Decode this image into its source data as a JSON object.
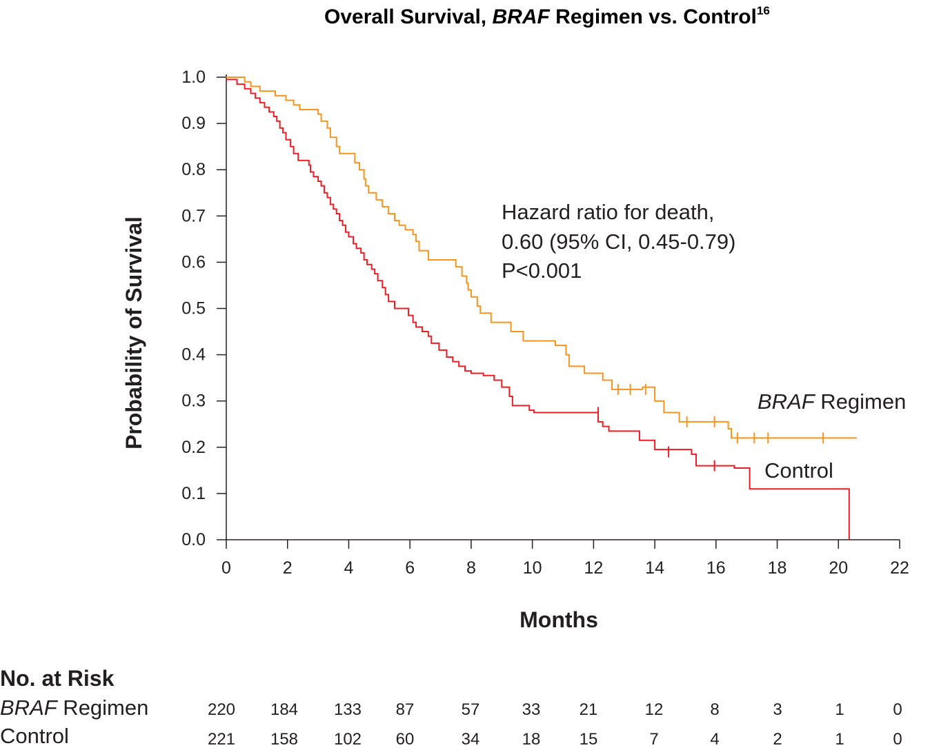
{
  "chart_data": {
    "type": "line",
    "title_main": "Overall Survival, ",
    "title_italic": "BRAF",
    "title_rest": " Regimen vs. Control",
    "title_sup": "16",
    "xlabel": "Months",
    "ylabel": "Probability of Survival",
    "xlim": [
      0,
      22
    ],
    "ylim": [
      0,
      1
    ],
    "x_ticks": [
      "0",
      "2",
      "4",
      "6",
      "8",
      "10",
      "12",
      "14",
      "16",
      "18",
      "20",
      "22"
    ],
    "y_ticks": [
      "0.0",
      "0.1",
      "0.2",
      "0.3",
      "0.4",
      "0.5",
      "0.6",
      "0.7",
      "0.8",
      "0.9",
      "1.0"
    ],
    "annotation": [
      "Hazard ratio for death,",
      "0.60 (95% CI, 0.45-0.79)",
      "P<0.001"
    ],
    "series": [
      {
        "name_italic": "BRAF",
        "name_rest": " Regimen",
        "color": "#f7941d",
        "steps": [
          [
            0,
            1.0
          ],
          [
            0.6,
            0.99
          ],
          [
            0.8,
            0.98
          ],
          [
            1.1,
            0.97
          ],
          [
            1.6,
            0.96
          ],
          [
            1.95,
            0.95
          ],
          [
            2.2,
            0.94
          ],
          [
            2.4,
            0.93
          ],
          [
            3.0,
            0.92
          ],
          [
            3.1,
            0.905
          ],
          [
            3.3,
            0.89
          ],
          [
            3.4,
            0.87
          ],
          [
            3.6,
            0.85
          ],
          [
            3.7,
            0.835
          ],
          [
            4.2,
            0.815
          ],
          [
            4.35,
            0.8
          ],
          [
            4.5,
            0.78
          ],
          [
            4.55,
            0.765
          ],
          [
            4.65,
            0.75
          ],
          [
            4.9,
            0.735
          ],
          [
            5.1,
            0.72
          ],
          [
            5.3,
            0.705
          ],
          [
            5.5,
            0.69
          ],
          [
            5.65,
            0.68
          ],
          [
            5.85,
            0.67
          ],
          [
            6.1,
            0.66
          ],
          [
            6.2,
            0.645
          ],
          [
            6.3,
            0.625
          ],
          [
            6.6,
            0.605
          ],
          [
            7.5,
            0.59
          ],
          [
            7.7,
            0.57
          ],
          [
            7.85,
            0.555
          ],
          [
            7.9,
            0.54
          ],
          [
            8.0,
            0.525
          ],
          [
            8.2,
            0.505
          ],
          [
            8.3,
            0.49
          ],
          [
            8.65,
            0.47
          ],
          [
            9.3,
            0.45
          ],
          [
            9.7,
            0.43
          ],
          [
            10.75,
            0.42
          ],
          [
            11.1,
            0.4
          ],
          [
            11.2,
            0.375
          ],
          [
            11.7,
            0.36
          ],
          [
            12.3,
            0.345
          ],
          [
            12.6,
            0.325
          ],
          [
            13.6,
            0.33
          ],
          [
            14.0,
            0.3
          ],
          [
            14.3,
            0.275
          ],
          [
            14.8,
            0.255
          ],
          [
            16.4,
            0.24
          ],
          [
            16.5,
            0.22
          ],
          [
            20.6,
            0.22
          ]
        ],
        "censors": [
          [
            12.8,
            0.325
          ],
          [
            13.2,
            0.325
          ],
          [
            13.7,
            0.325
          ],
          [
            15.05,
            0.255
          ],
          [
            15.95,
            0.255
          ],
          [
            16.7,
            0.22
          ],
          [
            17.25,
            0.22
          ],
          [
            17.7,
            0.22
          ],
          [
            19.5,
            0.22
          ]
        ]
      },
      {
        "name": "Control",
        "color": "#ed1c24",
        "steps": [
          [
            0,
            0.995
          ],
          [
            0.35,
            0.985
          ],
          [
            0.6,
            0.975
          ],
          [
            0.8,
            0.965
          ],
          [
            0.95,
            0.955
          ],
          [
            1.1,
            0.945
          ],
          [
            1.25,
            0.935
          ],
          [
            1.4,
            0.925
          ],
          [
            1.55,
            0.915
          ],
          [
            1.65,
            0.905
          ],
          [
            1.75,
            0.89
          ],
          [
            1.85,
            0.88
          ],
          [
            1.95,
            0.865
          ],
          [
            2.1,
            0.85
          ],
          [
            2.2,
            0.835
          ],
          [
            2.35,
            0.82
          ],
          [
            2.7,
            0.81
          ],
          [
            2.75,
            0.795
          ],
          [
            2.85,
            0.785
          ],
          [
            3.0,
            0.775
          ],
          [
            3.1,
            0.765
          ],
          [
            3.2,
            0.75
          ],
          [
            3.3,
            0.74
          ],
          [
            3.4,
            0.725
          ],
          [
            3.5,
            0.715
          ],
          [
            3.6,
            0.705
          ],
          [
            3.7,
            0.69
          ],
          [
            3.8,
            0.68
          ],
          [
            3.9,
            0.665
          ],
          [
            4.0,
            0.655
          ],
          [
            4.15,
            0.64
          ],
          [
            4.25,
            0.63
          ],
          [
            4.4,
            0.62
          ],
          [
            4.5,
            0.605
          ],
          [
            4.6,
            0.595
          ],
          [
            4.75,
            0.585
          ],
          [
            4.85,
            0.575
          ],
          [
            4.95,
            0.56
          ],
          [
            5.1,
            0.545
          ],
          [
            5.2,
            0.53
          ],
          [
            5.3,
            0.515
          ],
          [
            5.5,
            0.5
          ],
          [
            5.95,
            0.485
          ],
          [
            6.1,
            0.47
          ],
          [
            6.2,
            0.46
          ],
          [
            6.4,
            0.45
          ],
          [
            6.6,
            0.44
          ],
          [
            6.7,
            0.425
          ],
          [
            6.95,
            0.41
          ],
          [
            7.2,
            0.395
          ],
          [
            7.4,
            0.385
          ],
          [
            7.6,
            0.375
          ],
          [
            7.8,
            0.365
          ],
          [
            8.0,
            0.36
          ],
          [
            8.4,
            0.355
          ],
          [
            8.75,
            0.345
          ],
          [
            9.0,
            0.33
          ],
          [
            9.25,
            0.31
          ],
          [
            9.35,
            0.29
          ],
          [
            9.9,
            0.28
          ],
          [
            10.05,
            0.275
          ],
          [
            12.15,
            0.255
          ],
          [
            12.3,
            0.245
          ],
          [
            12.5,
            0.235
          ],
          [
            13.5,
            0.215
          ],
          [
            14.0,
            0.195
          ],
          [
            15.2,
            0.185
          ],
          [
            15.35,
            0.16
          ],
          [
            16.6,
            0.155
          ],
          [
            17.1,
            0.11
          ],
          [
            20.35,
            0.0
          ]
        ],
        "censors": [
          [
            12.15,
            0.275
          ],
          [
            14.45,
            0.19
          ],
          [
            15.95,
            0.16
          ]
        ]
      }
    ],
    "risk_table": {
      "heading": "No. at Risk",
      "rows": [
        {
          "label_italic": "BRAF",
          "label_rest": " Regimen",
          "values": [
            "220",
            "184",
            "133",
            "87",
            "57",
            "33",
            "21",
            "12",
            "8",
            "3",
            "1",
            "0"
          ]
        },
        {
          "label": "Control",
          "values": [
            "221",
            "158",
            "102",
            "60",
            "34",
            "18",
            "15",
            "7",
            "4",
            "2",
            "1",
            "0"
          ]
        }
      ]
    }
  }
}
